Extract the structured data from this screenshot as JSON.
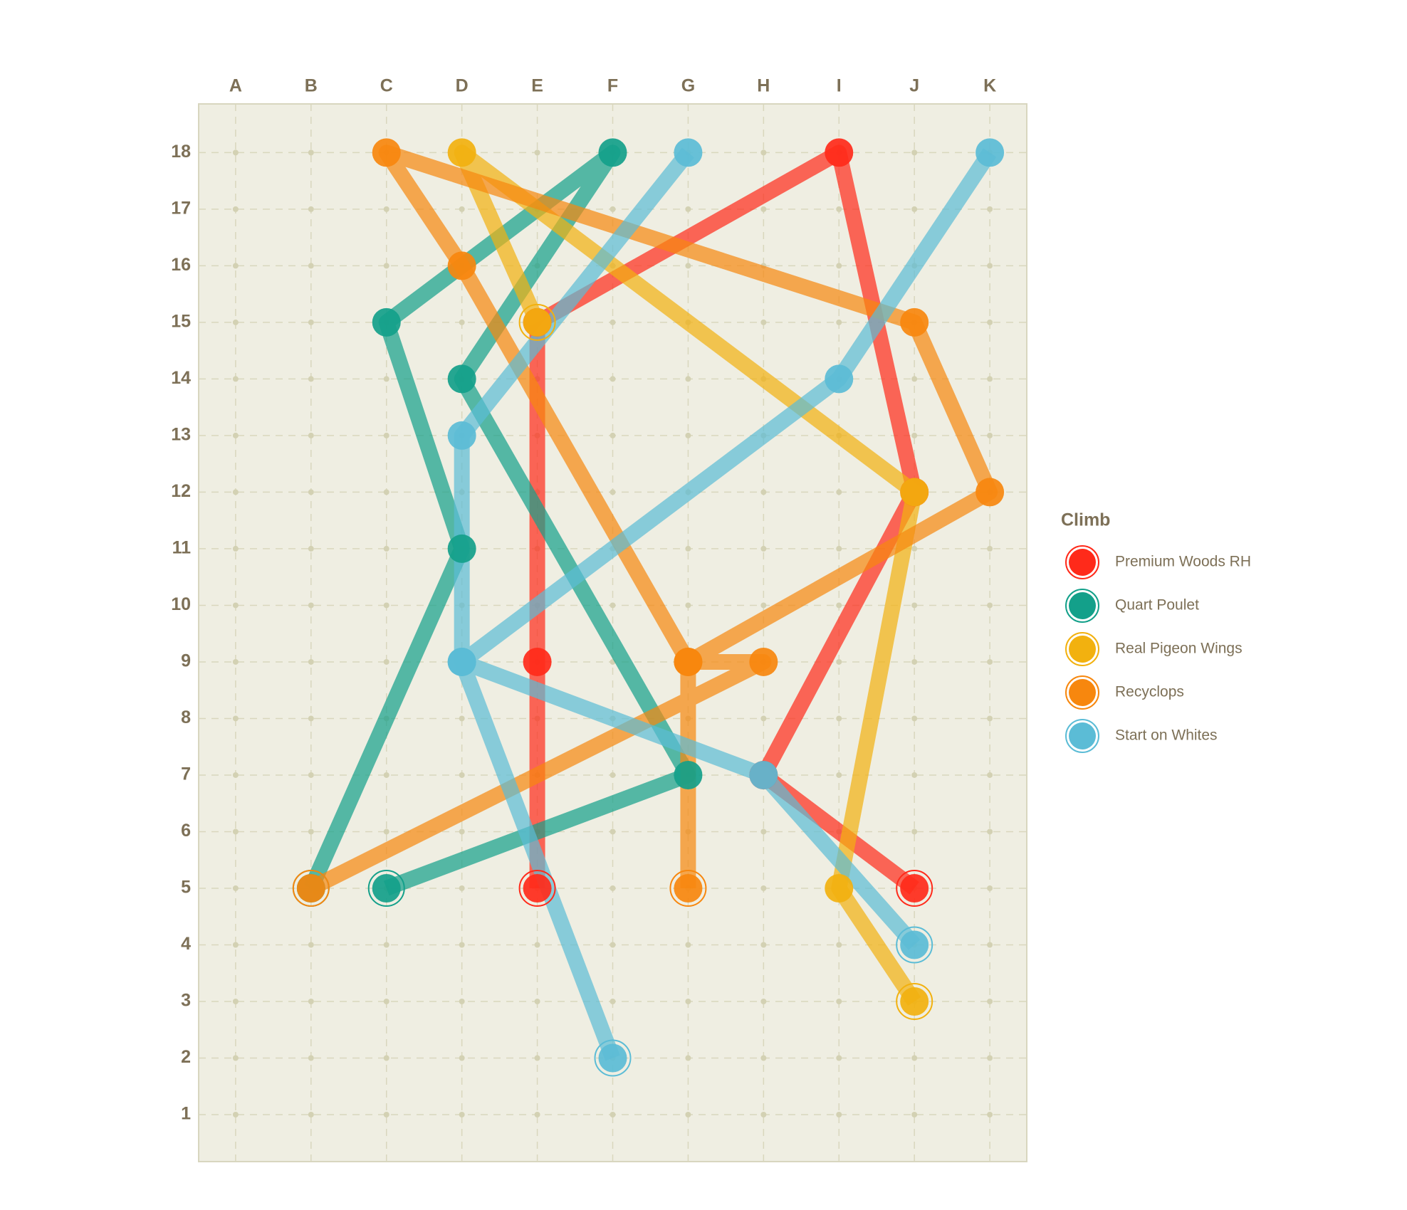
{
  "chart_data": {
    "type": "line",
    "legend_title": "Climb",
    "categories": [
      "A",
      "B",
      "C",
      "D",
      "E",
      "F",
      "G",
      "H",
      "I",
      "J",
      "K"
    ],
    "ylim": [
      0.17,
      18.86
    ],
    "yticks": [
      1,
      2,
      3,
      4,
      5,
      6,
      7,
      8,
      9,
      10,
      11,
      12,
      13,
      14,
      15,
      16,
      17,
      18
    ],
    "grid": true,
    "legend": "right",
    "series": [
      {
        "name": "Premium Woods RH",
        "color": "#ff2a1a",
        "x": [
          "E",
          "E",
          "E",
          "I",
          "J",
          "H",
          "J"
        ],
        "values": [
          5,
          9,
          15,
          18,
          12,
          7,
          5
        ]
      },
      {
        "name": "Quart Poulet",
        "color": "#13a08a",
        "x": [
          "C",
          "G",
          "D",
          "F",
          "C",
          "D",
          "B"
        ],
        "values": [
          5,
          7,
          14,
          18,
          15,
          11,
          5
        ]
      },
      {
        "name": "Real Pigeon Wings",
        "color": "#f2b10f",
        "x": [
          "E",
          "D",
          "J",
          "I",
          "J"
        ],
        "values": [
          15,
          18,
          12,
          5,
          3
        ]
      },
      {
        "name": "Recyclops",
        "color": "#f7870e",
        "x": [
          "B",
          "H",
          "G",
          "K",
          "J",
          "C",
          "D",
          "G",
          "G"
        ],
        "values": [
          5,
          9,
          9,
          12,
          15,
          18,
          16,
          9,
          5
        ]
      },
      {
        "name": "Start on Whites",
        "color": "#5bbcd6",
        "x": [
          "F",
          "D",
          "D",
          "G",
          null,
          "K",
          "I",
          "D",
          "H",
          "J"
        ],
        "values": [
          2,
          9,
          13,
          18,
          null,
          18,
          14,
          9,
          7,
          4
        ]
      }
    ]
  }
}
